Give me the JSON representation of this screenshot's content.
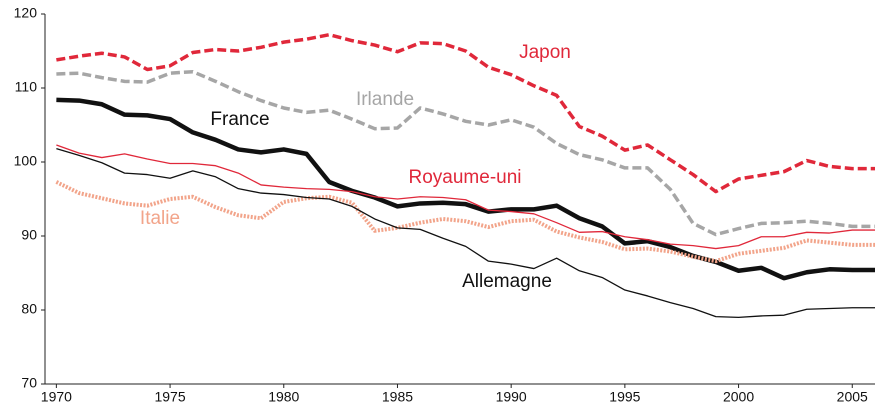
{
  "chart_data": {
    "type": "line",
    "x": [
      1970,
      1971,
      1972,
      1973,
      1974,
      1975,
      1976,
      1977,
      1978,
      1979,
      1980,
      1981,
      1982,
      1983,
      1984,
      1985,
      1986,
      1987,
      1988,
      1989,
      1990,
      1991,
      1992,
      1993,
      1994,
      1995,
      1996,
      1997,
      1998,
      1999,
      2000,
      2001,
      2002,
      2003,
      2004,
      2005,
      2006
    ],
    "xlim": [
      1969.5,
      2006
    ],
    "xticks": [
      1970,
      1975,
      1980,
      1985,
      1990,
      1995,
      2000,
      2005
    ],
    "ylim": [
      70,
      120
    ],
    "yticks": [
      70,
      80,
      90,
      100,
      110,
      120
    ],
    "grid": false,
    "series": [
      {
        "name": "Japon",
        "color": "#e0283a",
        "line_style": "dashed",
        "values": [
          113.8,
          114.3,
          114.7,
          114.2,
          112.5,
          113,
          114.8,
          115.2,
          115,
          115.5,
          116.2,
          116.6,
          117.2,
          116.4,
          115.8,
          114.9,
          116.1,
          116,
          115,
          112.8,
          111.8,
          110.3,
          109,
          104.8,
          103.5,
          101.6,
          102.3,
          100.3,
          98.3,
          96,
          97.7,
          98.2,
          98.7,
          100.2,
          99.4,
          99.1,
          99.1
        ]
      },
      {
        "name": "Irlande",
        "color": "#a6a6a6",
        "line_style": "dashed",
        "values": [
          111.9,
          112,
          111.4,
          110.9,
          110.8,
          112,
          112.2,
          110.9,
          109.5,
          108.3,
          107.3,
          106.7,
          107,
          105.8,
          104.5,
          104.6,
          107.3,
          106.5,
          105.5,
          105,
          105.7,
          104.7,
          102.5,
          101,
          100.3,
          99.2,
          99.2,
          96.3,
          91.7,
          90.2,
          91,
          91.7,
          91.8,
          92,
          91.7,
          91.3,
          91.3
        ]
      },
      {
        "name": "France",
        "color": "#111111",
        "line_style": "thick",
        "values": [
          108.4,
          108.3,
          107.8,
          106.4,
          106.3,
          105.8,
          104,
          103,
          101.7,
          101.3,
          101.7,
          101.1,
          97.3,
          96.1,
          95.2,
          94,
          94.4,
          94.5,
          94.3,
          93.3,
          93.6,
          93.6,
          94.1,
          92.4,
          91.3,
          89,
          89.3,
          88.5,
          87.3,
          86.5,
          85.3,
          85.7,
          84.3,
          85.1,
          85.5,
          85.4,
          85.4
        ]
      },
      {
        "name": "Royaume-uni",
        "color": "#e0283a",
        "line_style": "solid",
        "values": [
          102.3,
          101.2,
          100.6,
          101.1,
          100.4,
          99.8,
          99.8,
          99.5,
          98.5,
          96.9,
          96.6,
          96.4,
          96.3,
          96,
          95.3,
          95,
          95.3,
          95.2,
          94.9,
          93.5,
          93.3,
          93,
          91.8,
          90.5,
          90.6,
          89.9,
          89.5,
          88.9,
          88.7,
          88.3,
          88.7,
          89.9,
          89.9,
          90.5,
          90.4,
          90.8,
          90.8
        ]
      },
      {
        "name": "Italie",
        "color": "#f2a48a",
        "line_style": "dotted",
        "values": [
          97.3,
          95.8,
          95.1,
          94.4,
          94.1,
          95,
          95.3,
          93.9,
          92.8,
          92.4,
          94.6,
          95.1,
          95.3,
          94.5,
          90.7,
          91.1,
          91.8,
          92.3,
          92,
          91.2,
          92,
          92.2,
          90.6,
          89.8,
          89.2,
          88.2,
          88.3,
          87.9,
          87.2,
          86.6,
          87.6,
          88,
          88.4,
          89.4,
          89.1,
          88.8,
          88.8
        ]
      },
      {
        "name": "Allemagne",
        "color": "#111111",
        "line_style": "solid",
        "values": [
          101.8,
          100.9,
          99.9,
          98.5,
          98.3,
          97.8,
          98.8,
          98,
          96.4,
          95.8,
          95.6,
          95.2,
          95,
          94,
          92.3,
          91.1,
          90.9,
          89.7,
          88.6,
          86.6,
          86.2,
          85.6,
          87,
          85.3,
          84.4,
          82.7,
          81.9,
          81,
          80.2,
          79.1,
          79,
          79.2,
          79.3,
          80.1,
          80.2,
          80.3,
          80.3
        ]
      }
    ]
  }
}
